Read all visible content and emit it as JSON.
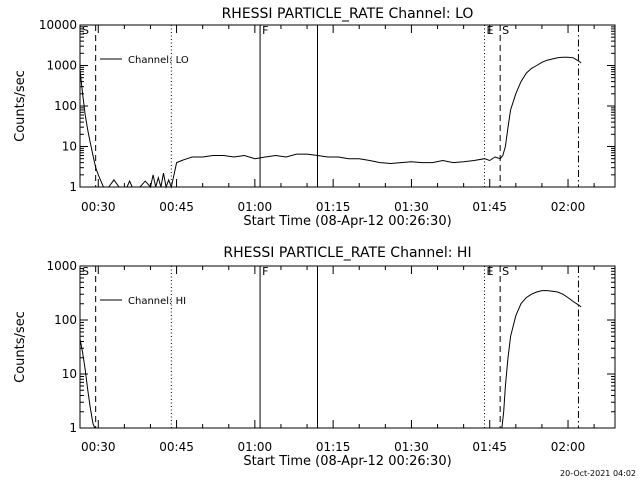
{
  "stamp": "20-Oct-2021 04:02",
  "chart_data": [
    {
      "type": "line",
      "title": "RHESSI PARTICLE_RATE Channel: LO",
      "xlabel": "Start Time (08-Apr-12 00:26:30)",
      "ylabel": "Counts/sec",
      "y_scale": "log",
      "ylim": [
        1,
        10000
      ],
      "xlim": [
        "00:26:30",
        "02:09:00"
      ],
      "x_ticks": [
        "00:30",
        "00:45",
        "01:00",
        "01:15",
        "01:30",
        "01:45",
        "02:00"
      ],
      "y_ticks": [
        "1",
        "10",
        "100",
        "1000",
        "10000"
      ],
      "legend": {
        "position": "top-left",
        "entries": [
          "Channel: LO"
        ]
      },
      "grid": false,
      "series": [
        {
          "name": "Channel: LO",
          "x": [
            "00:26:30",
            "00:27:00",
            "00:27:30",
            "00:28:00",
            "00:28:30",
            "00:29:00",
            "00:29:30",
            "00:30:00",
            "00:30:30",
            "00:31:00",
            "00:31:30",
            "00:32:00",
            "00:33:00",
            "00:34:00",
            "00:35:00",
            "00:35:30",
            "00:36:00",
            "00:36:30",
            "00:37:00",
            "00:38:00",
            "00:39:00",
            "00:40:00",
            "00:40:30",
            "00:41:00",
            "00:41:30",
            "00:42:00",
            "00:42:30",
            "00:43:00",
            "00:43:30",
            "00:44:00",
            "00:44:30",
            "00:45:00",
            "00:46:00",
            "00:47:00",
            "00:48:00",
            "00:50:00",
            "00:52:00",
            "00:54:00",
            "00:56:00",
            "00:58:00",
            "01:00:00",
            "01:02:00",
            "01:04:00",
            "01:06:00",
            "01:08:00",
            "01:10:00",
            "01:12:00",
            "01:14:00",
            "01:16:00",
            "01:18:00",
            "01:20:00",
            "01:22:00",
            "01:24:00",
            "01:26:00",
            "01:28:00",
            "01:30:00",
            "01:32:00",
            "01:34:00",
            "01:36:00",
            "01:38:00",
            "01:40:00",
            "01:42:00",
            "01:44:00",
            "01:45:00",
            "01:46:00",
            "01:47:00",
            "01:47:30",
            "01:48:00",
            "01:48:30",
            "01:49:00",
            "01:50:00",
            "01:51:00",
            "01:52:00",
            "01:53:00",
            "01:54:00",
            "01:55:00",
            "01:56:00",
            "01:57:00",
            "01:58:00",
            "01:59:00",
            "02:00:00",
            "02:01:00",
            "02:02:00",
            "02:02:30"
          ],
          "values": [
            800,
            200,
            60,
            25,
            12,
            6,
            3,
            2,
            1.4,
            1,
            1,
            1,
            1.5,
            1,
            1,
            1,
            1.4,
            1,
            1,
            1,
            1.4,
            1,
            2,
            1,
            1.7,
            1,
            2.2,
            1,
            1.5,
            1,
            2,
            4,
            4.5,
            5,
            5.5,
            5.5,
            6,
            6,
            5.5,
            6,
            5,
            5.5,
            6,
            5.5,
            6.5,
            6.5,
            6,
            5.5,
            5.5,
            5,
            5,
            4.5,
            4,
            3.8,
            4,
            4.2,
            4,
            4,
            4.5,
            4,
            4.2,
            4.5,
            5,
            4.5,
            5.5,
            5,
            6,
            10,
            30,
            80,
            200,
            400,
            650,
            850,
            1000,
            1200,
            1350,
            1450,
            1550,
            1600,
            1600,
            1550,
            1300,
            1150
          ]
        }
      ],
      "vlines": [
        {
          "label": "S",
          "time": "00:26:30",
          "style": "dashed"
        },
        {
          "label": "",
          "time": "00:29:30",
          "style": "dashed"
        },
        {
          "label": "",
          "time": "00:44:00",
          "style": "dotted"
        },
        {
          "label": "F",
          "time": "01:01:00",
          "style": "solid"
        },
        {
          "label": "",
          "time": "01:12:00",
          "style": "solid"
        },
        {
          "label": "E",
          "time": "01:44:00",
          "style": "dotted"
        },
        {
          "label": "S",
          "time": "01:47:00",
          "style": "dashed"
        },
        {
          "label": "",
          "time": "02:02:00",
          "style": "dashdot"
        }
      ]
    },
    {
      "type": "line",
      "title": "RHESSI PARTICLE_RATE Channel: HI",
      "xlabel": "Start Time (08-Apr-12 00:26:30)",
      "ylabel": "Counts/sec",
      "y_scale": "log",
      "ylim": [
        1,
        1000
      ],
      "xlim": [
        "00:26:30",
        "02:09:00"
      ],
      "x_ticks": [
        "00:30",
        "00:45",
        "01:00",
        "01:15",
        "01:30",
        "01:45",
        "02:00"
      ],
      "y_ticks": [
        "1",
        "10",
        "100",
        "1000"
      ],
      "legend": {
        "position": "top-left",
        "entries": [
          "Channel: HI"
        ]
      },
      "grid": false,
      "series": [
        {
          "name": "Channel: HI",
          "x": [
            "00:26:30",
            "00:27:00",
            "00:27:30",
            "00:28:00",
            "00:28:30",
            "00:29:00",
            "00:29:20",
            "01:47:20",
            "01:47:40",
            "01:48:00",
            "01:48:30",
            "01:49:00",
            "01:50:00",
            "01:51:00",
            "01:52:00",
            "01:53:00",
            "01:54:00",
            "01:55:00",
            "01:56:00",
            "01:57:00",
            "01:58:00",
            "01:59:00",
            "02:00:00",
            "02:01:00",
            "02:02:00",
            "02:02:30"
          ],
          "values": [
            45,
            25,
            12,
            5,
            2.3,
            1.2,
            1,
            1,
            2,
            6,
            20,
            50,
            120,
            200,
            260,
            300,
            330,
            350,
            350,
            340,
            330,
            300,
            260,
            220,
            190,
            175
          ]
        }
      ],
      "vlines": [
        {
          "label": "S",
          "time": "00:26:30",
          "style": "dashed"
        },
        {
          "label": "",
          "time": "00:29:30",
          "style": "dashed"
        },
        {
          "label": "",
          "time": "00:44:00",
          "style": "dotted"
        },
        {
          "label": "F",
          "time": "01:01:00",
          "style": "solid"
        },
        {
          "label": "",
          "time": "01:12:00",
          "style": "solid"
        },
        {
          "label": "E",
          "time": "01:44:00",
          "style": "dotted"
        },
        {
          "label": "S",
          "time": "01:47:00",
          "style": "dashed"
        },
        {
          "label": "",
          "time": "02:02:00",
          "style": "dashdot"
        }
      ]
    }
  ]
}
